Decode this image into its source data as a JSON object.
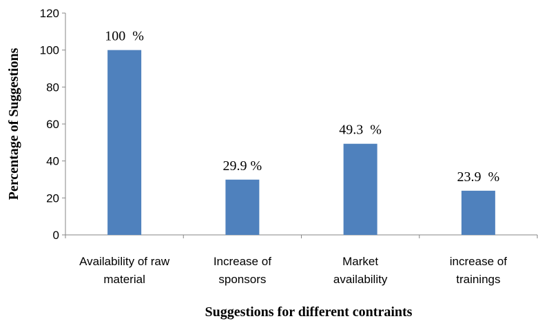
{
  "chart_data": {
    "type": "bar",
    "categories": [
      [
        "Availability of raw",
        "material"
      ],
      [
        "Increase of",
        "sponsors"
      ],
      [
        "Market",
        "availability"
      ],
      [
        "increase of",
        "trainings"
      ]
    ],
    "values": [
      100,
      29.9,
      49.3,
      23.9
    ],
    "data_labels": [
      "100  %",
      "29.9 %",
      "49.3  %",
      "23.9  %"
    ],
    "xlabel": "Suggestions for different contraints",
    "ylabel": "Percentage of Suggestions",
    "ylim": [
      0,
      120
    ],
    "yticks": [
      0,
      20,
      40,
      60,
      80,
      100,
      120
    ],
    "grid": false,
    "legend": "none",
    "bar_color": "#4f81bd"
  }
}
